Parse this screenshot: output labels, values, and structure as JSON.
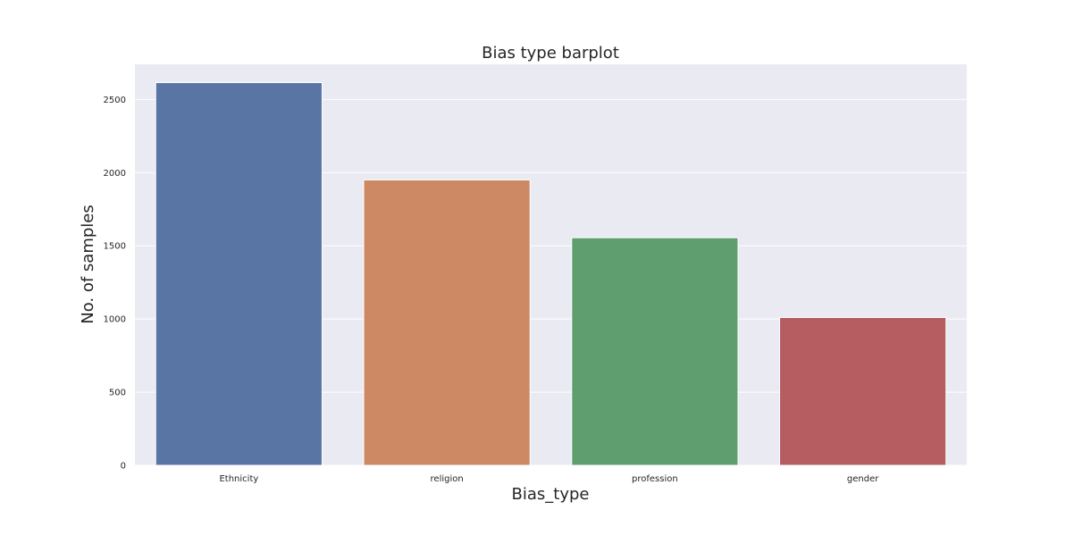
{
  "chart_data": {
    "type": "bar",
    "title": "Bias type barplot",
    "xlabel": "Bias_type",
    "ylabel": "No. of samples",
    "categories": [
      "Ethnicity",
      "religion",
      "profession",
      "gender"
    ],
    "values": [
      2615,
      1950,
      1555,
      1010
    ],
    "colors": [
      "#5875a4",
      "#cc8963",
      "#5f9e6e",
      "#b55d60"
    ],
    "ylim": [
      0,
      2740
    ],
    "yticks": [
      0,
      500,
      1000,
      1500,
      2000,
      2500
    ],
    "ytick_labels": [
      "0",
      "500",
      "1000",
      "1500",
      "2000",
      "2500"
    ],
    "grid": true,
    "legend": "none",
    "background": "#eaeaf2"
  }
}
